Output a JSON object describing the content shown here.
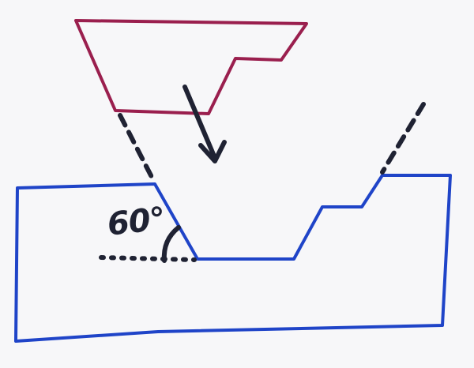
{
  "diagram": {
    "angle_label": "60°",
    "colors": {
      "tool": "#9a1f4e",
      "workpiece": "#1f44c8",
      "ink": "#1f2233",
      "paper": "#f7f7f9"
    }
  }
}
